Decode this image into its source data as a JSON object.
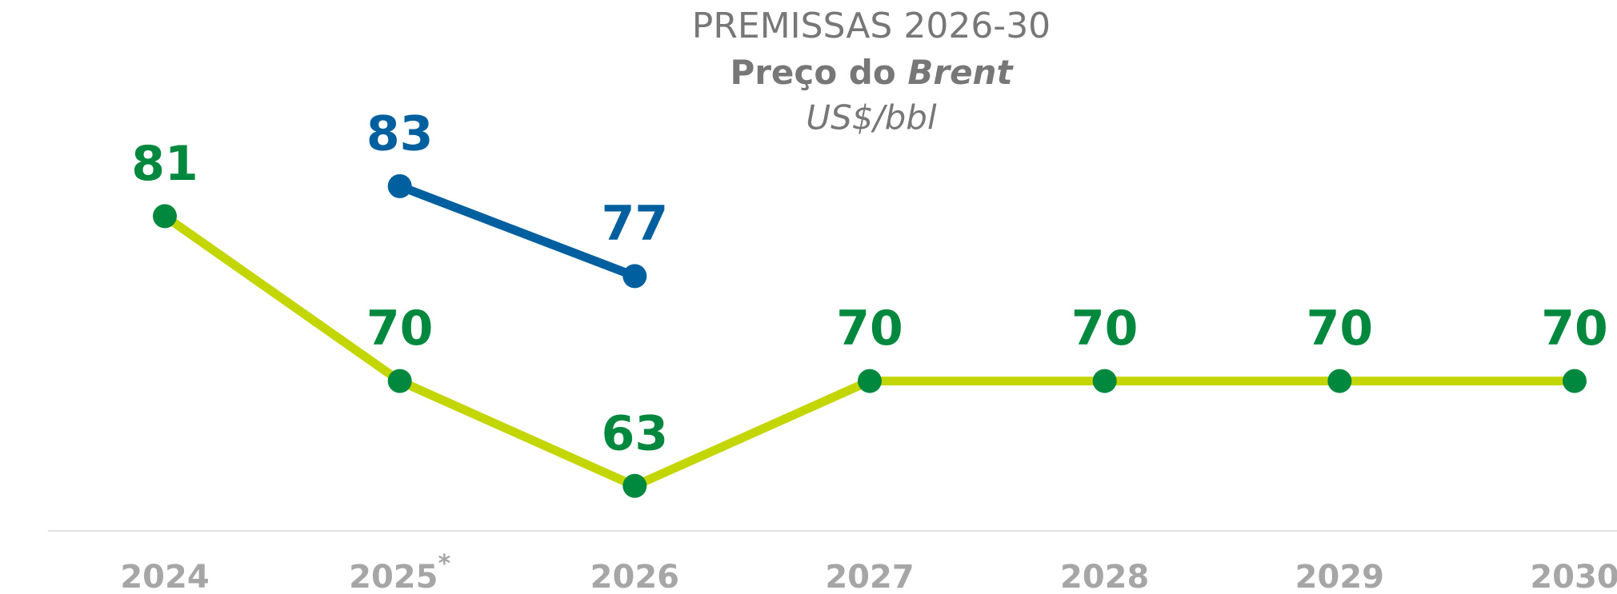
{
  "chart_data": {
    "type": "line",
    "title": "PREMISSAS 2026-30",
    "subtitle_parts": [
      "Preço do",
      "Brent"
    ],
    "unit": "US$/bbl",
    "categories": [
      "2024",
      "2025",
      "2026",
      "2027",
      "2028",
      "2029",
      "2030"
    ],
    "annotations": [
      {
        "category": "2025",
        "text": "*"
      }
    ],
    "series": [
      {
        "color": "#c4d600",
        "marker_color": "#00883f",
        "values": [
          81,
          70,
          63,
          70,
          70,
          70,
          70
        ]
      },
      {
        "color": "#005f9e",
        "values": [
          null,
          83,
          77,
          null,
          null,
          null,
          null
        ]
      }
    ],
    "ylim": [
      60,
      95
    ],
    "grid": false
  }
}
